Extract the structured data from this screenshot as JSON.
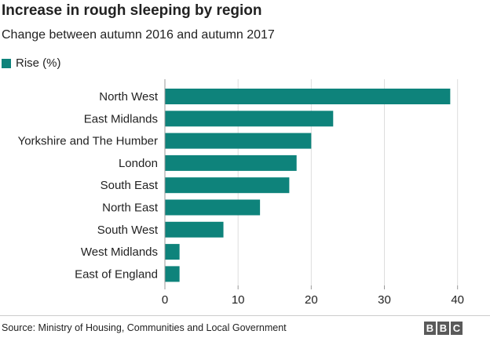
{
  "header": {
    "title": "Increase in rough sleeping by region",
    "subtitle": "Change between autumn 2016 and autumn 2017"
  },
  "legend": {
    "label": "Rise (%)"
  },
  "footer": {
    "source": "Source: Ministry of Housing, Communities and Local Government",
    "logo_letters": [
      "B",
      "B",
      "C"
    ]
  },
  "colors": {
    "bar": "#0e837b",
    "axis": "#999999",
    "grid": "#dddddd",
    "text": "#222222"
  },
  "chart_data": {
    "type": "bar",
    "orientation": "horizontal",
    "title": "Increase in rough sleeping by region",
    "subtitle": "Change between autumn 2016 and autumn 2017",
    "categories": [
      "North West",
      "East Midlands",
      "Yorkshire and The Humber",
      "London",
      "South East",
      "North East",
      "South West",
      "West Midlands",
      "East of England"
    ],
    "series": [
      {
        "name": "Rise (%)",
        "values": [
          39,
          23,
          20,
          18,
          17,
          13,
          8,
          2,
          2
        ]
      }
    ],
    "xlim": [
      0,
      41
    ],
    "xticks": [
      0,
      10,
      20,
      30,
      40
    ],
    "grid": true,
    "legend_position": "top-left"
  }
}
